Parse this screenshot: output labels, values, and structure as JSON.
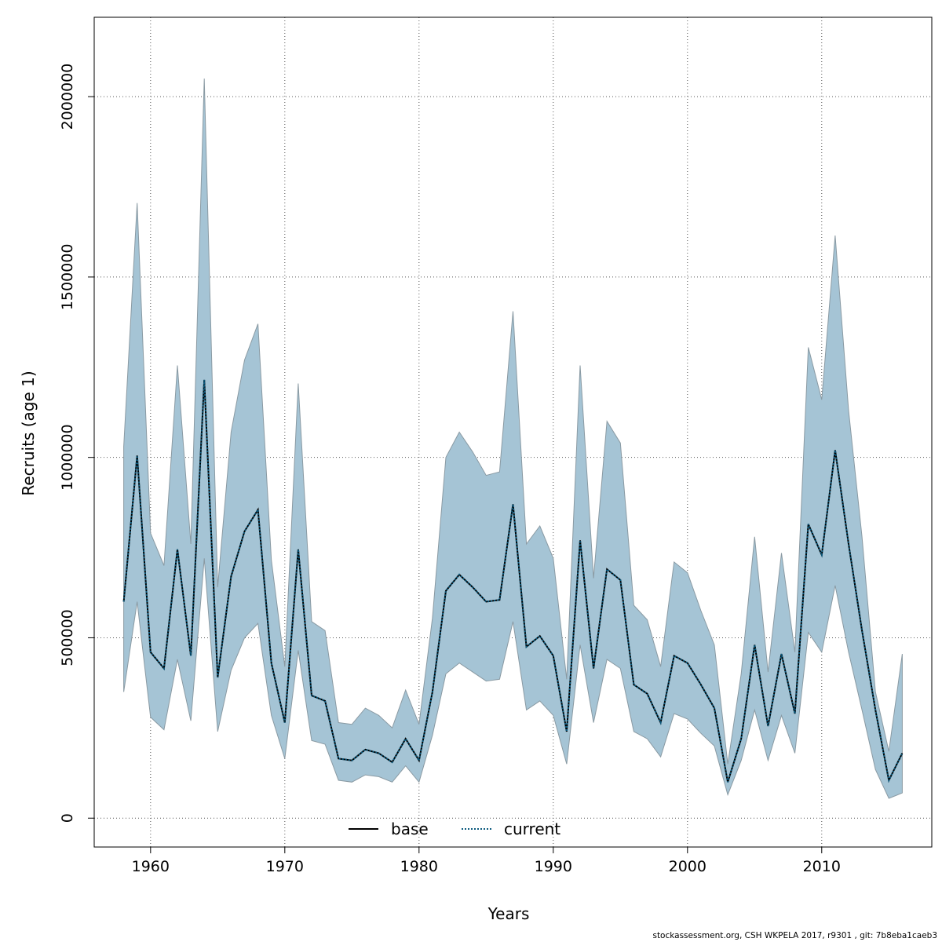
{
  "chart_data": {
    "type": "line",
    "xlabel": "Years",
    "ylabel": "Recruits (age 1)",
    "xlim": [
      1955.8,
      2018.2
    ],
    "ylim": [
      -80000,
      2220000
    ],
    "x_ticks": [
      1960,
      1970,
      1980,
      1990,
      2000,
      2010
    ],
    "x_tick_labels": [
      "1960",
      "1970",
      "1980",
      "1990",
      "2000",
      "2010"
    ],
    "y_ticks": [
      0,
      500000,
      1000000,
      1500000,
      2000000
    ],
    "y_tick_labels": [
      "0",
      "500000",
      "1000000",
      "1500000",
      "2000000"
    ],
    "grid": true,
    "legend_position": "bottom-center",
    "band_color": "#a5c4d5",
    "x": [
      1958,
      1959,
      1960,
      1961,
      1962,
      1963,
      1964,
      1965,
      1966,
      1967,
      1968,
      1969,
      1970,
      1971,
      1972,
      1973,
      1974,
      1975,
      1976,
      1977,
      1978,
      1979,
      1980,
      1981,
      1982,
      1983,
      1984,
      1985,
      1986,
      1987,
      1988,
      1989,
      1990,
      1991,
      1992,
      1993,
      1994,
      1995,
      1996,
      1997,
      1998,
      1999,
      2000,
      2001,
      2002,
      2003,
      2004,
      2005,
      2006,
      2007,
      2008,
      2009,
      2010,
      2011,
      2012,
      2013,
      2014,
      2015,
      2016
    ],
    "series": [
      {
        "name": "base",
        "color": "#000000",
        "style": "solid",
        "values": [
          600000,
          1005000,
          460000,
          415000,
          745000,
          450000,
          1215000,
          390000,
          670000,
          795000,
          855000,
          430000,
          265000,
          745000,
          340000,
          325000,
          165000,
          160000,
          190000,
          180000,
          155000,
          220000,
          160000,
          350000,
          630000,
          675000,
          640000,
          600000,
          605000,
          870000,
          475000,
          505000,
          450000,
          240000,
          770000,
          415000,
          690000,
          660000,
          370000,
          345000,
          265000,
          450000,
          430000,
          370000,
          305000,
          100000,
          220000,
          480000,
          255000,
          455000,
          290000,
          815000,
          730000,
          1020000,
          760000,
          520000,
          300000,
          105000,
          180000
        ]
      },
      {
        "name": "current",
        "color": "#0b5a7e",
        "style": "dotted",
        "values": [
          600000,
          1005000,
          460000,
          415000,
          745000,
          450000,
          1215000,
          390000,
          670000,
          795000,
          855000,
          430000,
          265000,
          745000,
          340000,
          325000,
          165000,
          160000,
          190000,
          180000,
          155000,
          220000,
          160000,
          350000,
          630000,
          675000,
          640000,
          600000,
          605000,
          870000,
          475000,
          505000,
          450000,
          240000,
          770000,
          415000,
          690000,
          660000,
          370000,
          345000,
          265000,
          450000,
          430000,
          370000,
          305000,
          100000,
          220000,
          480000,
          255000,
          455000,
          290000,
          815000,
          730000,
          1020000,
          760000,
          520000,
          300000,
          105000,
          180000
        ]
      }
    ],
    "band_upper": [
      1030000,
      1705000,
      790000,
      700000,
      1255000,
      760000,
      2050000,
      640000,
      1070000,
      1270000,
      1370000,
      715000,
      420000,
      1205000,
      545000,
      520000,
      265000,
      260000,
      305000,
      285000,
      250000,
      355000,
      260000,
      555000,
      1000000,
      1070000,
      1015000,
      950000,
      960000,
      1405000,
      760000,
      810000,
      720000,
      385000,
      1255000,
      665000,
      1100000,
      1040000,
      590000,
      550000,
      420000,
      710000,
      680000,
      575000,
      480000,
      150000,
      400000,
      780000,
      405000,
      735000,
      460000,
      1305000,
      1160000,
      1615000,
      1130000,
      780000,
      350000,
      185000,
      455000
    ],
    "band_lower": [
      350000,
      600000,
      280000,
      245000,
      440000,
      270000,
      720000,
      240000,
      410000,
      500000,
      540000,
      285000,
      165000,
      465000,
      215000,
      205000,
      105000,
      100000,
      120000,
      115000,
      100000,
      145000,
      100000,
      230000,
      400000,
      430000,
      405000,
      380000,
      385000,
      545000,
      300000,
      325000,
      285000,
      150000,
      480000,
      265000,
      440000,
      415000,
      240000,
      220000,
      170000,
      290000,
      275000,
      235000,
      200000,
      65000,
      160000,
      300000,
      160000,
      285000,
      180000,
      515000,
      460000,
      645000,
      460000,
      300000,
      135000,
      55000,
      70000
    ]
  },
  "footer_text": "stockassessment.org, CSH  WKPELA  2017, r9301 , git: 7b8eba1caeb3"
}
